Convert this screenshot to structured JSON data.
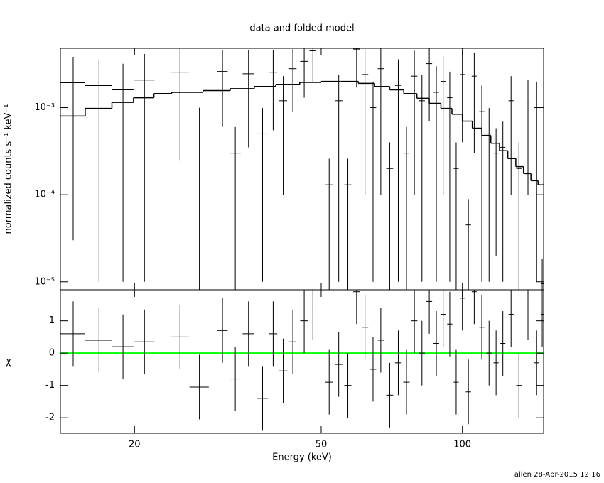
{
  "footer": "allen 28-Apr-2015 12:16",
  "chart_data": [
    {
      "type": "spectrum",
      "title": "data and folded model",
      "y_label": "normalized counts s⁻¹ keV⁻¹",
      "log_x": true,
      "log_y": true,
      "xlim": [
        13.9,
        149
      ],
      "ylim": [
        8.1e-06,
        0.0048
      ],
      "xticks": [
        20,
        50,
        100
      ],
      "yticks": [
        {
          "value": 1e-05,
          "label": "10⁻⁵"
        },
        {
          "value": 0.0001,
          "label": "10⁻⁴"
        },
        {
          "value": 0.001,
          "label": "10⁻³"
        }
      ],
      "model": {
        "color": "#000000",
        "bins": [
          13.9,
          15.7,
          17.9,
          19.9,
          22,
          24,
          28,
          32,
          36,
          40,
          45,
          50,
          55,
          60,
          65,
          70,
          75,
          80,
          85,
          90,
          95,
          100,
          105,
          110,
          115,
          120,
          125,
          130,
          135,
          140,
          145,
          149
        ],
        "values": [
          0.0008,
          0.00098,
          0.00115,
          0.0013,
          0.00145,
          0.0015,
          0.00157,
          0.00165,
          0.00175,
          0.00185,
          0.00195,
          0.002,
          0.002,
          0.0019,
          0.00175,
          0.0016,
          0.00145,
          0.00128,
          0.00112,
          0.00098,
          0.00084,
          0.0007,
          0.00058,
          0.00048,
          0.00039,
          0.00032,
          0.00026,
          0.00021,
          0.000175,
          0.000145,
          0.00013
        ]
      },
      "data": {
        "color": "#000000",
        "x": [
          14.8,
          16.8,
          18.9,
          21,
          25,
          27.5,
          30.8,
          32.8,
          35,
          37.5,
          39.5,
          41.5,
          43.5,
          46,
          48,
          52,
          54.5,
          57,
          59.5,
          62,
          64.5,
          67,
          70,
          73,
          76,
          79,
          82,
          85,
          88,
          91,
          94,
          97,
          100,
          103,
          106,
          110,
          114,
          118,
          122,
          127,
          132,
          138,
          144,
          148
        ],
        "xerr": [
          0.9,
          1.1,
          1,
          1.05,
          1.1,
          1.3,
          0.8,
          0.9,
          1,
          1,
          0.8,
          0.8,
          0.8,
          0.9,
          0.8,
          1,
          1,
          1,
          1,
          1,
          1,
          1,
          1.2,
          1.2,
          1.2,
          1.2,
          1.2,
          1.2,
          1.2,
          1.2,
          1.2,
          1.2,
          1.2,
          1.3,
          1.3,
          1.4,
          1.4,
          1.5,
          1.5,
          1.6,
          1.7,
          1.7,
          1.8,
          1
        ],
        "values": [
          0.00193,
          0.00179,
          0.0016,
          0.00207,
          0.00255,
          0.0005,
          0.0026,
          0.0003,
          0.00245,
          0.0005,
          0.00255,
          0.0012,
          0.0028,
          0.0034,
          0.0045,
          0.00013,
          0.0012,
          0.00013,
          0.0047,
          0.0024,
          0.001,
          0.0028,
          0.0002,
          0.0018,
          0.0003,
          0.0023,
          0.0012,
          0.0032,
          0.0015,
          0.002,
          0.0013,
          0.0002,
          0.0024,
          4.5e-05,
          0.0023,
          0.0009,
          0.0005,
          0.0003,
          0.00035,
          0.0012,
          0.0002,
          0.0011,
          0.001,
          9.5e-06
        ],
        "errors": [
          0.0019,
          0.00178,
          0.00159,
          0.00206,
          0.0023,
          0.000499,
          0.002,
          0.000299,
          0.0021,
          0.00049,
          0.002,
          0.0011,
          0.0019,
          0.0021,
          0.0025,
          0.000129,
          0.00119,
          0.000129,
          0.003,
          0.0023,
          0.00099,
          0.0027,
          0.000199,
          0.00179,
          0.000299,
          0.0022,
          0.00119,
          0.0025,
          0.00149,
          0.0019,
          0.00129,
          0.000199,
          0.002,
          4.4e-05,
          0.002,
          0.00089,
          0.00049,
          0.00028,
          0.00034,
          0.0011,
          0.000199,
          0.001,
          0.00099,
          9e-06
        ]
      }
    },
    {
      "type": "residuals",
      "x_label": "Energy (keV)",
      "y_label": "χ",
      "log_x": true,
      "xlim": [
        13.9,
        149
      ],
      "ylim": [
        -2.48,
        1.96
      ],
      "xticks": [
        20,
        50,
        100
      ],
      "yticks": [
        -2,
        -1,
        0,
        1
      ],
      "reference_line": {
        "value": 0,
        "color": "#00ff00"
      },
      "data": {
        "color": "#000000",
        "x": [
          14.8,
          16.8,
          18.9,
          21,
          25,
          27.5,
          30.8,
          32.8,
          35,
          37.5,
          39.5,
          41.5,
          43.5,
          46,
          48,
          52,
          54.5,
          57,
          59.5,
          62,
          64.5,
          67,
          70,
          73,
          76,
          79,
          82,
          85,
          88,
          91,
          94,
          97,
          100,
          103,
          106,
          110,
          114,
          118,
          122,
          127,
          132,
          138,
          144,
          148
        ],
        "xerr": [
          0.9,
          1.1,
          1,
          1.05,
          1.1,
          1.3,
          0.8,
          0.9,
          1,
          1,
          0.8,
          0.8,
          0.8,
          0.9,
          0.8,
          1,
          1,
          1,
          1,
          1,
          1,
          1,
          1.2,
          1.2,
          1.2,
          1.2,
          1.2,
          1.2,
          1.2,
          1.2,
          1.2,
          1.2,
          1.2,
          1.3,
          1.3,
          1.4,
          1.4,
          1.5,
          1.5,
          1.6,
          1.7,
          1.7,
          1.8,
          1
        ],
        "values": [
          0.6,
          0.4,
          0.2,
          0.35,
          0.5,
          -1.05,
          0.7,
          -0.8,
          0.6,
          -1.4,
          0.6,
          -0.55,
          0.35,
          1.0,
          1.4,
          -0.9,
          -0.35,
          -1.0,
          1.9,
          0.8,
          -0.5,
          0.4,
          -1.3,
          -0.3,
          -0.9,
          1.0,
          0.0,
          1.6,
          0.3,
          1.2,
          0.9,
          -0.9,
          1.7,
          -1.2,
          1.9,
          0.8,
          0.0,
          -0.3,
          0.3,
          1.2,
          -1.0,
          1.4,
          -0.3,
          1.2
        ],
        "errors": [
          1,
          1,
          1,
          1,
          1,
          1,
          1,
          1,
          1,
          1,
          1,
          1,
          1,
          1,
          1,
          1,
          1,
          1,
          1,
          1,
          1,
          1,
          1,
          1,
          1,
          1,
          1,
          1,
          1,
          1,
          1,
          1,
          1,
          1,
          1,
          1,
          1,
          1,
          1,
          1,
          1,
          1,
          1,
          1
        ]
      }
    }
  ]
}
